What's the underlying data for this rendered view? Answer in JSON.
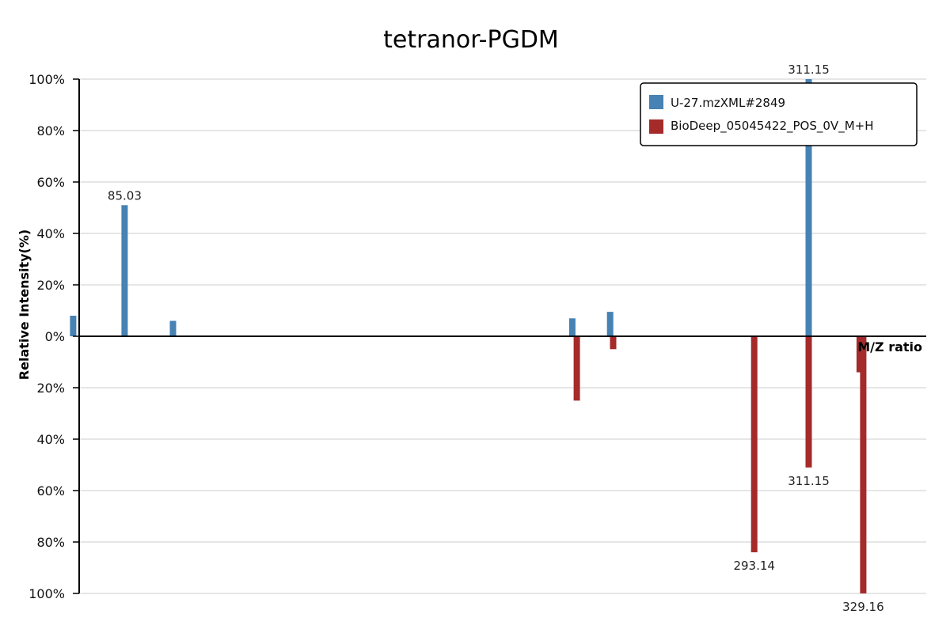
{
  "chart_data": {
    "type": "bar",
    "title": "tetranor-PGDM",
    "xlabel": "M/Z ratio",
    "ylabel": "Relative Intensity(%)",
    "y_ticks_top": [
      "100%",
      "80%",
      "60%",
      "40%",
      "20%",
      "0%"
    ],
    "y_ticks_bottom": [
      "20%",
      "40%",
      "60%",
      "80%",
      "100%"
    ],
    "ylim": [
      -100,
      100
    ],
    "xlim": [
      70,
      350
    ],
    "grid": true,
    "legend_position": "top-right",
    "series": [
      {
        "name": "U-27.mzXML#2849",
        "color": "#4682b4",
        "direction": "up",
        "points": [
          {
            "mz": 68.0,
            "intensity": 8
          },
          {
            "mz": 85.03,
            "intensity": 51,
            "label": "85.03"
          },
          {
            "mz": 101.0,
            "intensity": 6
          },
          {
            "mz": 233.0,
            "intensity": 7
          },
          {
            "mz": 245.5,
            "intensity": 9.5
          },
          {
            "mz": 311.15,
            "intensity": 100,
            "label": "311.15"
          }
        ]
      },
      {
        "name": "BioDeep_05045422_POS_0V_M+H",
        "color": "#a52a2a",
        "direction": "down",
        "points": [
          {
            "mz": 234.5,
            "intensity": 25
          },
          {
            "mz": 246.5,
            "intensity": 5
          },
          {
            "mz": 293.14,
            "intensity": 84,
            "label": "293.14"
          },
          {
            "mz": 311.15,
            "intensity": 51,
            "label": "311.15"
          },
          {
            "mz": 328.0,
            "intensity": 14
          },
          {
            "mz": 329.16,
            "intensity": 100,
            "label": "329.16"
          }
        ]
      }
    ]
  }
}
